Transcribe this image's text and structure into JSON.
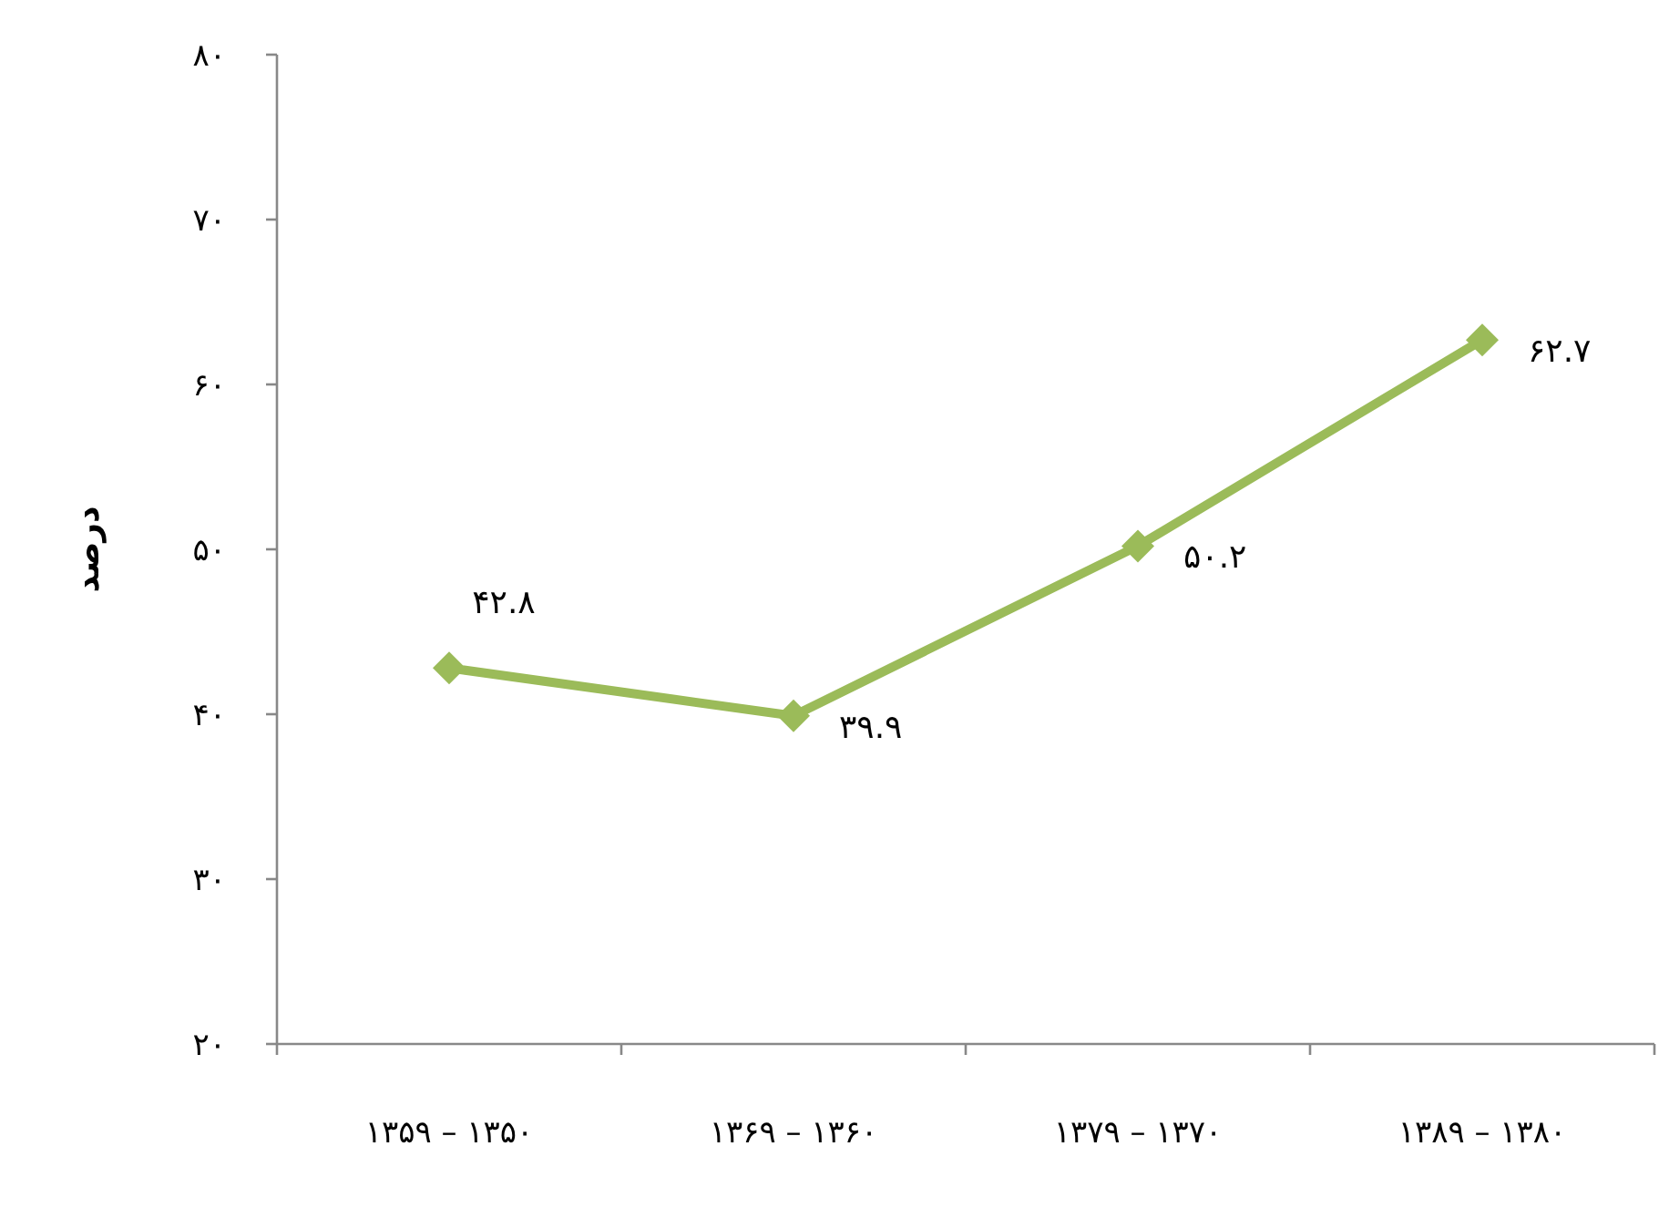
{
  "chart_data": {
    "type": "line",
    "ylabel": "درصد",
    "categories": [
      "۱۳۵۰ – ۱۳۵۹",
      "۱۳۶۰ – ۱۳۶۹",
      "۱۳۷۰ – ۱۳۷۹",
      "۱۳۸۰ – ۱۳۸۹"
    ],
    "series": [
      {
        "color": "#9bbb59",
        "values": [
          42.8,
          39.9,
          50.2,
          62.7
        ],
        "value_labels": [
          "۴۲.۸",
          "۳۹.۹",
          "۵۰.۲",
          "۶۲.۷"
        ]
      }
    ],
    "ylim": [
      20,
      80
    ],
    "yticks": [
      {
        "value": 20,
        "label": "۲۰"
      },
      {
        "value": 30,
        "label": "۳۰"
      },
      {
        "value": 40,
        "label": "۴۰"
      },
      {
        "value": 50,
        "label": "۵۰"
      },
      {
        "value": 60,
        "label": "۶۰"
      },
      {
        "value": 70,
        "label": "۷۰"
      },
      {
        "value": 80,
        "label": "۸۰"
      }
    ],
    "marker": "diamond",
    "line_style": "solid",
    "grid": false
  }
}
